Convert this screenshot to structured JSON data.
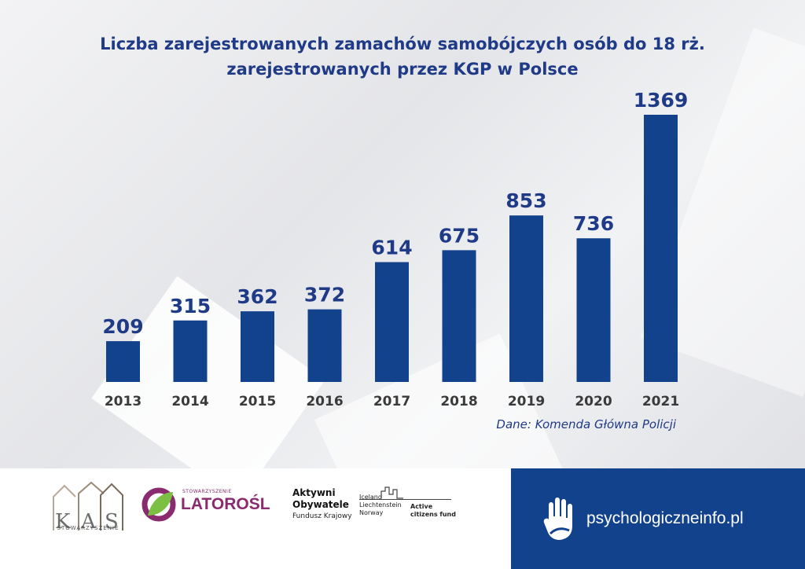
{
  "chart_data": {
    "type": "bar",
    "title_lines": [
      "Liczba zarejestrowanych zamachów samobójczych osób do 18 rż.",
      "zarejestrowanych przez KGP w Polsce"
    ],
    "categories": [
      "2013",
      "2014",
      "2015",
      "2016",
      "2017",
      "2018",
      "2019",
      "2020",
      "2021"
    ],
    "values": [
      209,
      315,
      362,
      372,
      614,
      675,
      853,
      736,
      1369
    ],
    "xlabel": "",
    "ylabel": "",
    "ylim": [
      0,
      1369
    ],
    "bar_color": "#13428d",
    "value_color": "#1f3a86",
    "grid": false
  },
  "source": "Dane: Komenda Główna Policji",
  "footer": {
    "kas": {
      "logo_text": "KAS",
      "subtitle": "STOWARZYSZENIE"
    },
    "latorosl": {
      "small": "STOWARZYSZENIE",
      "name": "LATOROŚL"
    },
    "aktywni": {
      "title_line1": "Aktywni",
      "title_line2": "Obywatele",
      "subtitle": "Fundusz Krajowy"
    },
    "grants": {
      "countries": [
        "Iceland",
        "Liechtenstein",
        "Norway"
      ],
      "fund": [
        "Active",
        "citizens fund"
      ]
    },
    "site": "psychologiczneinfo.pl"
  },
  "colors": {
    "accent": "#13428d",
    "title": "#1f3a86",
    "latorosl": "#8a2a6f",
    "latorosl_green": "#7bc043"
  }
}
